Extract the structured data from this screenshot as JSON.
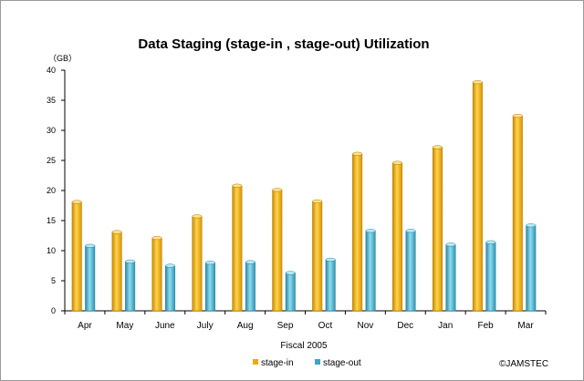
{
  "chart_data": {
    "type": "bar",
    "title": "Data Staging (stage-in , stage-out) Utilization",
    "ylabel": "（GB）",
    "xlabel": "Fiscal 2005",
    "categories": [
      "Apr",
      "May",
      "June",
      "July",
      "Aug",
      "Sep",
      "Oct",
      "Nov",
      "Dec",
      "Jan",
      "Feb",
      "Mar"
    ],
    "series": [
      {
        "name": "stage-in",
        "color": "#f2a900",
        "values": [
          18.1,
          13.1,
          12.1,
          15.7,
          20.8,
          20.1,
          18.2,
          26.1,
          24.6,
          27.2,
          38.0,
          32.4
        ]
      },
      {
        "name": "stage-out",
        "color": "#3aa6c4",
        "values": [
          10.8,
          8.2,
          7.5,
          8.0,
          8.1,
          6.3,
          8.5,
          13.3,
          13.3,
          11.0,
          11.4,
          14.2
        ]
      }
    ],
    "ylim": [
      0,
      40
    ],
    "yticks": [
      0,
      5,
      10,
      15,
      20,
      25,
      30,
      35,
      40
    ],
    "grid": false,
    "legend": "bottom",
    "credit": "©JAMSTEC"
  }
}
